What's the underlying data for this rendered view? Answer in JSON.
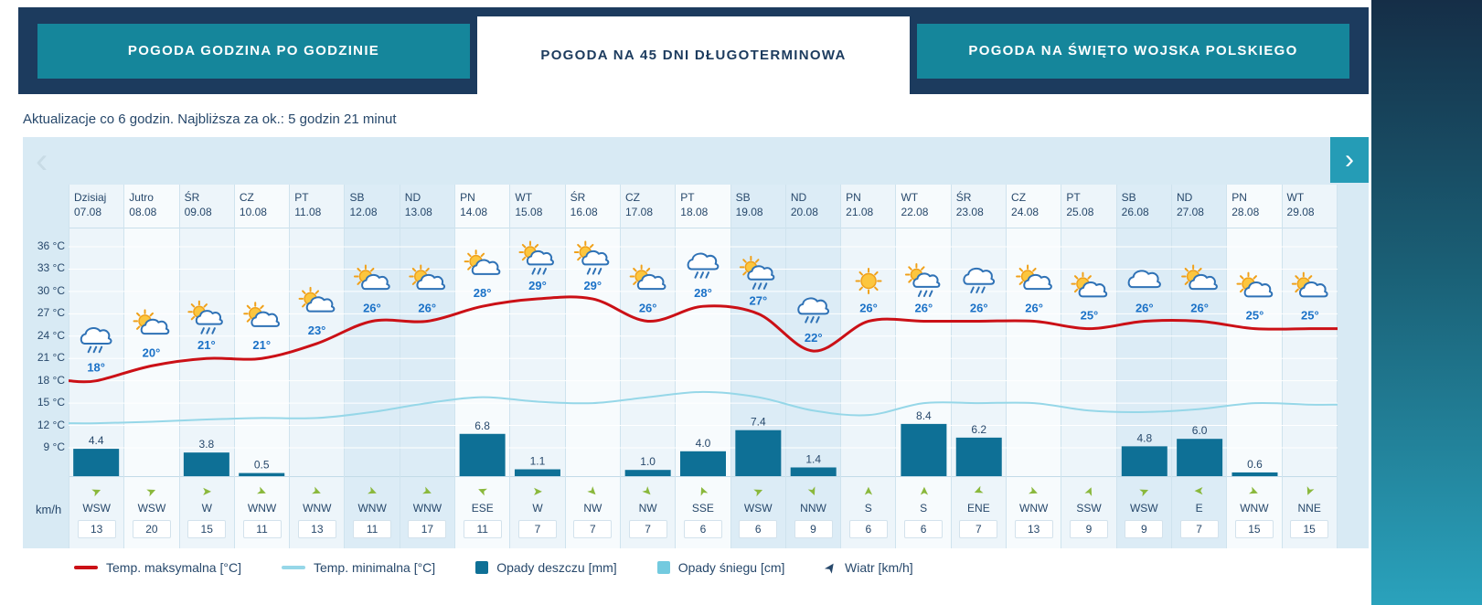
{
  "tabs": [
    {
      "label": "POGODA GODZINA PO GODZINIE",
      "active": false
    },
    {
      "label": "POGODA NA 45 DNI DŁUGOTERMINOWA",
      "active": true
    },
    {
      "label": "POGODA NA ŚWIĘTO WOJSKA POLSKIEGO",
      "active": false
    }
  ],
  "update_info": "Aktualizacje co 6 godzin. Najbliższa za ok.: 5 godzin 21 minut",
  "icons": {
    "prev": "‹",
    "next": "›",
    "wind_arrow": "➤"
  },
  "wind_unit_label": "km/h",
  "legend": [
    {
      "label": "Temp. maksymalna [°C]",
      "color": "#cb1016"
    },
    {
      "label": "Temp. minimalna [°C]",
      "color": "#96d7e8"
    },
    {
      "label": "Opady deszczu [mm]",
      "color": "#0e7096"
    },
    {
      "label": "Opady śniegu [cm]",
      "color": "#73cadf"
    },
    {
      "label": "Wiatr [km/h]",
      "color": "#27486b"
    }
  ],
  "chart_data": {
    "type": "line+bar",
    "y_axis": {
      "min": 9,
      "max": 36,
      "step": 3,
      "unit": "°C",
      "tick_labels": [
        "36 °C",
        "33 °C",
        "30 °C",
        "27 °C",
        "24 °C",
        "21 °C",
        "18 °C",
        "15 °C",
        "12 °C",
        "9 °C"
      ]
    },
    "series": [
      {
        "name": "Temp. maksymalna [°C]",
        "type": "line",
        "color": "#cb1016",
        "field": "temp_max"
      },
      {
        "name": "Temp. minimalna [°C]",
        "type": "line",
        "color": "#96d7e8",
        "field": "temp_min"
      },
      {
        "name": "Opady deszczu [mm]",
        "type": "bar",
        "color": "#0e7096",
        "field": "precip_mm"
      },
      {
        "name": "Wiatr [km/h]",
        "type": "wind",
        "field": "wind_kmh"
      }
    ],
    "days": [
      {
        "day": "Dzisiaj",
        "date": "07.08",
        "weekend": false,
        "icon": "cloud-rain",
        "temp_max": 18,
        "temp_min": 12.3,
        "precip_mm": 4.4,
        "wind_dir": "WSW",
        "wind_kmh": 13
      },
      {
        "day": "Jutro",
        "date": "08.08",
        "weekend": false,
        "icon": "sun-cloud",
        "temp_max": 20,
        "temp_min": 12.5,
        "precip_mm": null,
        "wind_dir": "WSW",
        "wind_kmh": 20
      },
      {
        "day": "ŚR",
        "date": "09.08",
        "weekend": false,
        "icon": "sun-cloud-rain",
        "temp_max": 21,
        "temp_min": 12.8,
        "precip_mm": 3.8,
        "wind_dir": "W",
        "wind_kmh": 15
      },
      {
        "day": "CZ",
        "date": "10.08",
        "weekend": false,
        "icon": "sun-cloud",
        "temp_max": 21,
        "temp_min": 13,
        "precip_mm": 0.5,
        "wind_dir": "WNW",
        "wind_kmh": 11
      },
      {
        "day": "PT",
        "date": "11.08",
        "weekend": false,
        "icon": "sun-cloud",
        "temp_max": 23,
        "temp_min": 13,
        "precip_mm": null,
        "wind_dir": "WNW",
        "wind_kmh": 13
      },
      {
        "day": "SB",
        "date": "12.08",
        "weekend": true,
        "icon": "sun-cloud",
        "temp_max": 26,
        "temp_min": 13.8,
        "precip_mm": null,
        "wind_dir": "WNW",
        "wind_kmh": 11
      },
      {
        "day": "ND",
        "date": "13.08",
        "weekend": true,
        "icon": "sun-cloud",
        "temp_max": 26,
        "temp_min": 15,
        "precip_mm": null,
        "wind_dir": "WNW",
        "wind_kmh": 17
      },
      {
        "day": "PN",
        "date": "14.08",
        "weekend": false,
        "icon": "sun-cloud",
        "temp_max": 28,
        "temp_min": 15.8,
        "precip_mm": 6.8,
        "wind_dir": "ESE",
        "wind_kmh": 11
      },
      {
        "day": "WT",
        "date": "15.08",
        "weekend": false,
        "icon": "sun-cloud-rain",
        "temp_max": 29,
        "temp_min": 15.2,
        "precip_mm": 1.1,
        "wind_dir": "W",
        "wind_kmh": 7
      },
      {
        "day": "ŚR",
        "date": "16.08",
        "weekend": false,
        "icon": "sun-cloud-rain",
        "temp_max": 29,
        "temp_min": 15,
        "precip_mm": null,
        "wind_dir": "NW",
        "wind_kmh": 7
      },
      {
        "day": "CZ",
        "date": "17.08",
        "weekend": false,
        "icon": "sun-cloud",
        "temp_max": 26,
        "temp_min": 15.8,
        "precip_mm": 1.0,
        "wind_dir": "NW",
        "wind_kmh": 7
      },
      {
        "day": "PT",
        "date": "18.08",
        "weekend": false,
        "icon": "cloud-rain",
        "temp_max": 28,
        "temp_min": 16.5,
        "precip_mm": 4.0,
        "wind_dir": "SSE",
        "wind_kmh": 6
      },
      {
        "day": "SB",
        "date": "19.08",
        "weekend": true,
        "icon": "sun-cloud-rain",
        "temp_max": 27,
        "temp_min": 15.8,
        "precip_mm": 7.4,
        "wind_dir": "WSW",
        "wind_kmh": 6
      },
      {
        "day": "ND",
        "date": "20.08",
        "weekend": true,
        "icon": "cloud-rain",
        "temp_max": 22,
        "temp_min": 14,
        "precip_mm": 1.4,
        "wind_dir": "NNW",
        "wind_kmh": 9
      },
      {
        "day": "PN",
        "date": "21.08",
        "weekend": false,
        "icon": "sun",
        "temp_max": 26,
        "temp_min": 13.4,
        "precip_mm": null,
        "wind_dir": "S",
        "wind_kmh": 6
      },
      {
        "day": "WT",
        "date": "22.08",
        "weekend": false,
        "icon": "sun-cloud-rain",
        "temp_max": 26,
        "temp_min": 15,
        "precip_mm": 8.4,
        "wind_dir": "S",
        "wind_kmh": 6
      },
      {
        "day": "ŚR",
        "date": "23.08",
        "weekend": false,
        "icon": "cloud-rain",
        "temp_max": 26,
        "temp_min": 15,
        "precip_mm": 6.2,
        "wind_dir": "ENE",
        "wind_kmh": 7
      },
      {
        "day": "CZ",
        "date": "24.08",
        "weekend": false,
        "icon": "sun-cloud",
        "temp_max": 26,
        "temp_min": 15,
        "precip_mm": null,
        "wind_dir": "WNW",
        "wind_kmh": 13
      },
      {
        "day": "PT",
        "date": "25.08",
        "weekend": false,
        "icon": "sun-cloud",
        "temp_max": 25,
        "temp_min": 14,
        "precip_mm": null,
        "wind_dir": "SSW",
        "wind_kmh": 9
      },
      {
        "day": "SB",
        "date": "26.08",
        "weekend": true,
        "icon": "cloud",
        "temp_max": 26,
        "temp_min": 13.8,
        "precip_mm": 4.8,
        "wind_dir": "WSW",
        "wind_kmh": 9
      },
      {
        "day": "ND",
        "date": "27.08",
        "weekend": true,
        "icon": "sun-cloud",
        "temp_max": 26,
        "temp_min": 14.2,
        "precip_mm": 6.0,
        "wind_dir": "E",
        "wind_kmh": 7
      },
      {
        "day": "PN",
        "date": "28.08",
        "weekend": false,
        "icon": "sun-cloud",
        "temp_max": 25,
        "temp_min": 15,
        "precip_mm": 0.6,
        "wind_dir": "WNW",
        "wind_kmh": 15
      },
      {
        "day": "WT",
        "date": "29.08",
        "weekend": false,
        "icon": "sun-cloud",
        "temp_max": 25,
        "temp_min": 14.8,
        "precip_mm": null,
        "wind_dir": "NNE",
        "wind_kmh": 15
      }
    ]
  }
}
